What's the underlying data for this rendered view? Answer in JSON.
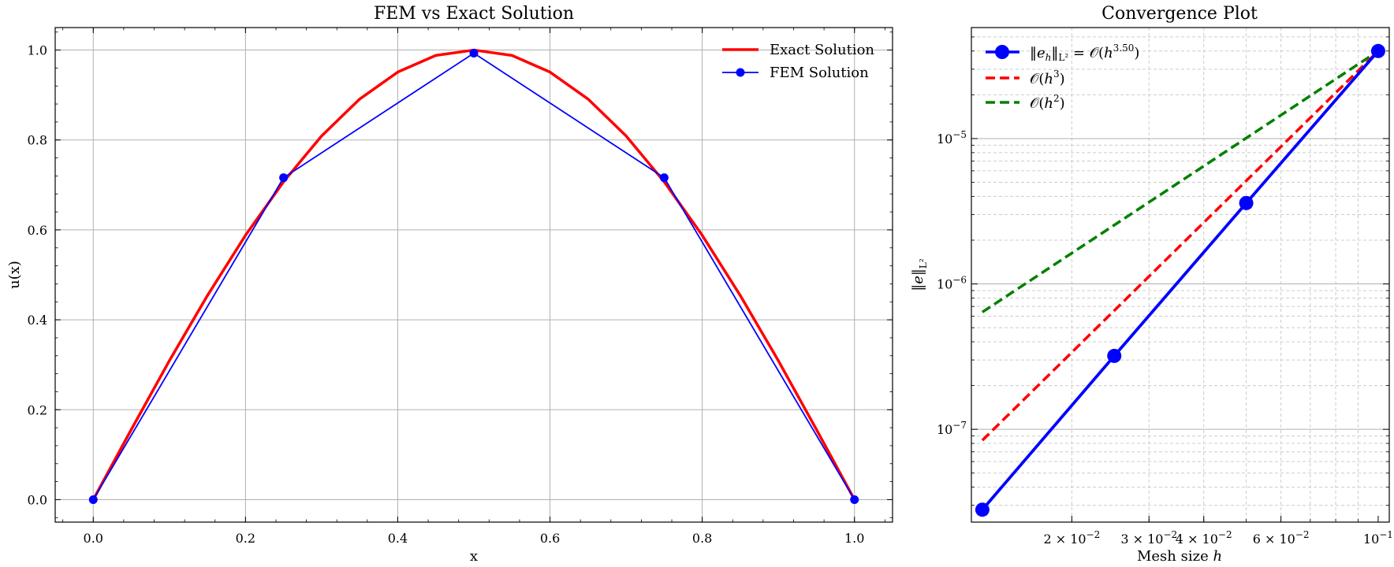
{
  "chart_data": [
    {
      "type": "line",
      "title": "FEM vs Exact Solution",
      "xlabel": "x",
      "ylabel": "u(x)",
      "xlim": [
        -0.05,
        1.05
      ],
      "ylim": [
        -0.05,
        1.05
      ],
      "xticks": [
        0.0,
        0.2,
        0.4,
        0.6,
        0.8,
        1.0
      ],
      "xtick_labels": [
        "0.0",
        "0.2",
        "0.4",
        "0.6",
        "0.8",
        "1.0"
      ],
      "yticks": [
        0.0,
        0.2,
        0.4,
        0.6,
        0.8,
        1.0
      ],
      "ytick_labels": [
        "0.0",
        "0.2",
        "0.4",
        "0.6",
        "0.8",
        "1.0"
      ],
      "grid": true,
      "legend_position": "top-right",
      "series": [
        {
          "name": "Exact Solution",
          "color": "#ff0000",
          "marker": "none",
          "x": [
            0.0,
            0.05,
            0.1,
            0.15,
            0.2,
            0.25,
            0.3,
            0.35,
            0.4,
            0.45,
            0.5,
            0.55,
            0.6,
            0.65,
            0.7,
            0.75,
            0.8,
            0.85,
            0.9,
            0.95,
            1.0
          ],
          "y": [
            0.0,
            0.156,
            0.309,
            0.454,
            0.588,
            0.707,
            0.809,
            0.891,
            0.951,
            0.988,
            1.0,
            0.988,
            0.951,
            0.891,
            0.809,
            0.707,
            0.588,
            0.454,
            0.309,
            0.156,
            0.0
          ]
        },
        {
          "name": "FEM Solution",
          "color": "#0000ff",
          "marker": "circle",
          "x": [
            0.0,
            0.25,
            0.5,
            0.75,
            1.0
          ],
          "y": [
            0.0,
            0.716,
            0.993,
            0.716,
            0.0
          ]
        }
      ]
    },
    {
      "type": "line",
      "title": "Convergence Plot",
      "xlabel": "Mesh size h",
      "ylabel": "||e||L²",
      "xscale": "log",
      "yscale": "log",
      "xlim": [
        0.0118,
        0.106
      ],
      "ylim": [
        2.3e-08,
        5.8e-05
      ],
      "xticks": [
        0.02,
        0.03,
        0.04,
        0.06,
        0.1
      ],
      "xtick_labels": [
        {
          "base": "2 × 10",
          "exp": "−2"
        },
        {
          "base": "3 × 10",
          "exp": "−2"
        },
        {
          "base": "4 × 10",
          "exp": "−2"
        },
        {
          "base": "6 × 10",
          "exp": "−2"
        },
        {
          "base": "10",
          "exp": "−1"
        }
      ],
      "yticks": [
        1e-07,
        1e-06,
        1e-05
      ],
      "ytick_labels": [
        {
          "base": "10",
          "exp": "−7"
        },
        {
          "base": "10",
          "exp": "−6"
        },
        {
          "base": "10",
          "exp": "−5"
        }
      ],
      "grid": true,
      "legend_position": "top-left",
      "series": [
        {
          "name": "||eh||L² = O(h^3.50)",
          "color": "#0000ff",
          "marker": "circle",
          "x": [
            0.0125,
            0.025,
            0.05,
            0.1
          ],
          "y": [
            2.8e-08,
            3.2e-07,
            3.6e-06,
            4e-05
          ]
        },
        {
          "name": "O(h³)",
          "color": "#ff0000",
          "style": "dashed",
          "x": [
            0.0125,
            0.1
          ],
          "y": [
            8.4e-08,
            4e-05
          ]
        },
        {
          "name": "O(h²)",
          "color": "#008000",
          "style": "dashed",
          "x": [
            0.0125,
            0.1
          ],
          "y": [
            6.4e-07,
            4e-05
          ]
        }
      ]
    }
  ]
}
